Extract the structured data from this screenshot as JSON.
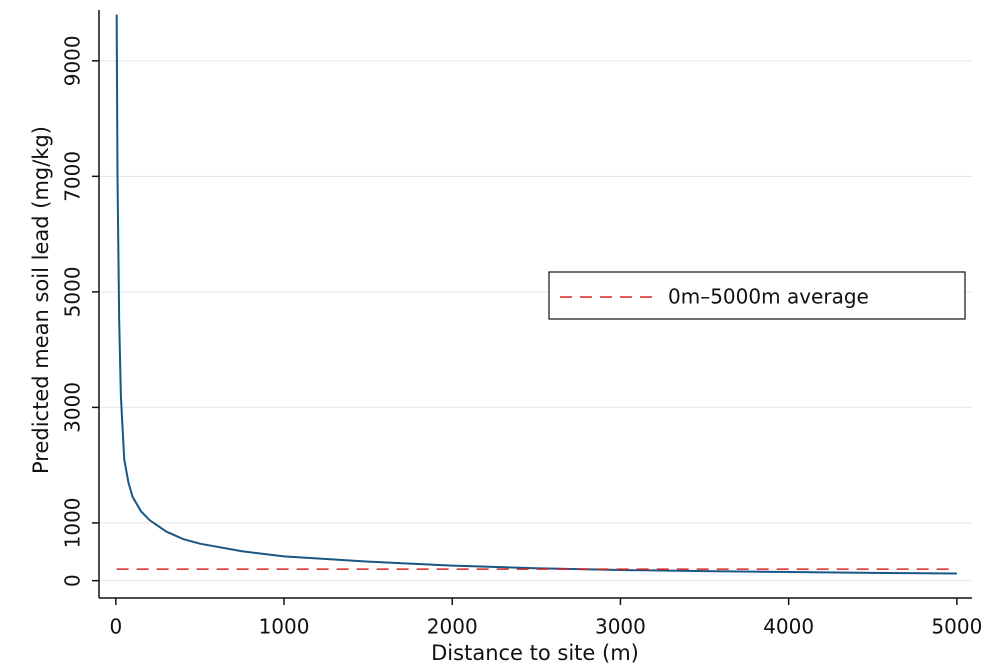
{
  "chart_data": {
    "type": "line",
    "x_label": "Distance to site (m)",
    "y_label": "Predicted mean soil lead (mg/kg)",
    "x": [
      5,
      10,
      20,
      30,
      50,
      75,
      100,
      150,
      200,
      300,
      400,
      500,
      750,
      1000,
      1500,
      2000,
      2500,
      3000,
      3500,
      4000,
      4500,
      5000
    ],
    "series": [
      {
        "color": "#1a5784",
        "values": [
          9800,
          7000,
          4500,
          3200,
          2100,
          1700,
          1450,
          1200,
          1050,
          850,
          720,
          640,
          510,
          420,
          330,
          260,
          215,
          185,
          165,
          150,
          135,
          125
        ]
      }
    ],
    "reference_line": {
      "name": "0m–5000m average",
      "value": 200,
      "color": "#d62728"
    },
    "xlim": [
      -100,
      5090
    ],
    "ylim": [
      -300,
      9880
    ],
    "xticks": [
      0,
      1000,
      2000,
      3000,
      4000,
      5000
    ],
    "yticks": [
      0,
      1000,
      3000,
      5000,
      7000,
      9000
    ],
    "grid": true,
    "legend_position": "right"
  }
}
